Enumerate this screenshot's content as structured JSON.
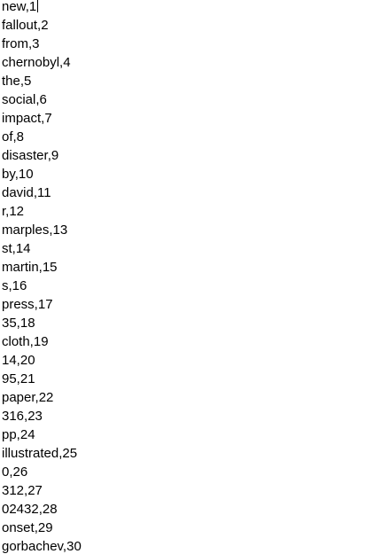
{
  "editor": {
    "lines": [
      "new,1",
      "fallout,2",
      "from,3",
      "chernobyl,4",
      "the,5",
      "social,6",
      "impact,7",
      "of,8",
      "disaster,9",
      "by,10",
      "david,11",
      "r,12",
      "marples,13",
      "st,14",
      "martin,15",
      "s,16",
      "press,17",
      "35,18",
      "cloth,19",
      "14,20",
      "95,21",
      "paper,22",
      "316,23",
      "pp,24",
      "illustrated,25",
      "0,26",
      "312,27",
      "02432,28",
      "onset,29",
      "gorbachev,30"
    ]
  }
}
